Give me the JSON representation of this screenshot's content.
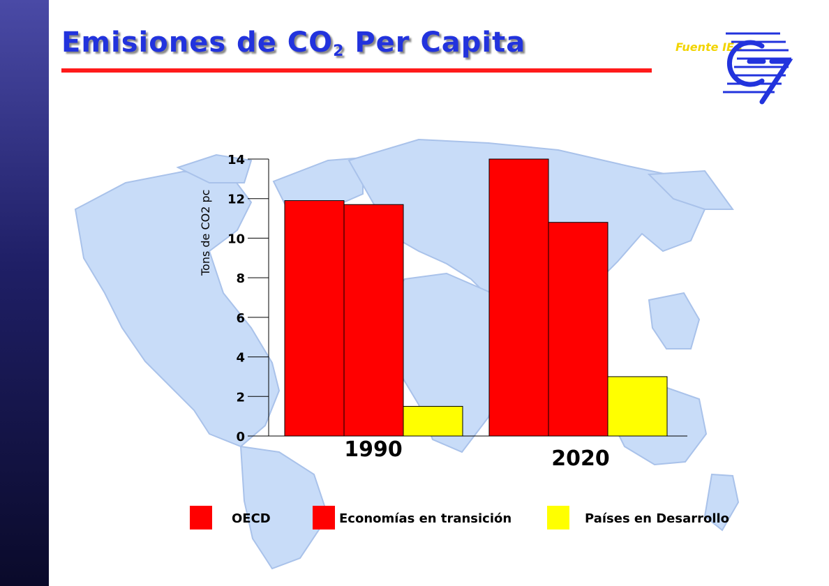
{
  "header": {
    "title_main": "Emisiones de CO",
    "title_sub": "2",
    "title_rest": " Per Capita",
    "source": "Fuente IEA"
  },
  "colors": {
    "title": "#2233dd",
    "accent_rule": "#ff1a1a",
    "source": "#f2d400",
    "map": "#c8dcf8"
  },
  "icons": {
    "logo": "g7-logo-icon",
    "background": "world-map-image"
  },
  "chart_data": {
    "type": "bar",
    "categories": [
      "1990",
      "2020"
    ],
    "series": [
      {
        "name": "OECD",
        "color": "#ff0000",
        "values": [
          11.9,
          14.0
        ]
      },
      {
        "name": "Economías en transición",
        "color": "#ff0000",
        "values": [
          11.7,
          10.8
        ]
      },
      {
        "name": "Países en Desarrollo",
        "color": "#ffff00",
        "values": [
          1.5,
          3.0
        ]
      }
    ],
    "ylabel": "Tons de CO2 pc",
    "xlabel": "",
    "ylim": [
      0,
      14
    ],
    "yticks": [
      0,
      2,
      4,
      6,
      8,
      10,
      12,
      14
    ],
    "grid": false,
    "legend": "bottom"
  }
}
